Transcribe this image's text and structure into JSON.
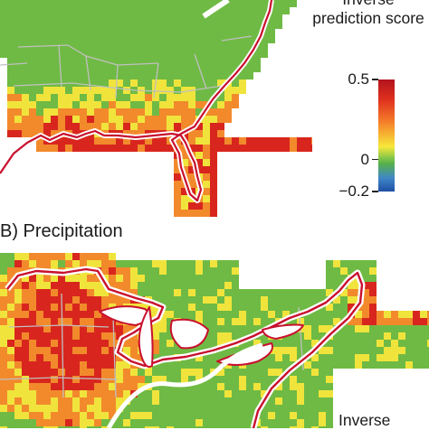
{
  "panel_top": {
    "legend": {
      "title_line1": "Inverse",
      "title_line2": "prediction score",
      "ticks": [
        {
          "label": "0.5",
          "value": 0.5
        },
        {
          "label": "0",
          "value": 0
        },
        {
          "label": "−0.2",
          "value": -0.2
        }
      ],
      "colors": [
        "#1e4fa3",
        "#3f87c7",
        "#57b04a",
        "#7bc34a",
        "#f7e83a",
        "#f57f2a",
        "#e0301e",
        "#b2131f"
      ]
    }
  },
  "panel_bottom": {
    "label": "B) Precipitation",
    "legend_title": "Inverse"
  },
  "colors": {
    "green": "#6fba44",
    "yellow": "#f0e43c",
    "orange": "#f28a2c",
    "red": "#d8261e",
    "boundary_red": "#c8102e",
    "border_gray": "#bdbdbd"
  }
}
